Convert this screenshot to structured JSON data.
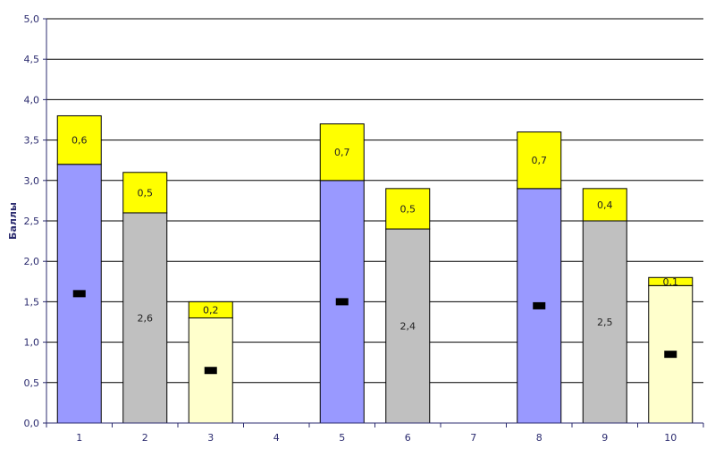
{
  "chart_data": {
    "type": "bar",
    "stacked": true,
    "categories": [
      "1",
      "2",
      "3",
      "4",
      "5",
      "6",
      "7",
      "8",
      "9",
      "10"
    ],
    "series": [
      {
        "values": [
          3.2,
          2.6,
          1.3,
          0,
          3.0,
          2.4,
          0,
          2.9,
          2.5,
          1.7
        ],
        "colors": [
          "#9999ff",
          "#c0c0c0",
          "#ffffcc",
          "#ffffff",
          "#9999ff",
          "#c0c0c0",
          "#ffffff",
          "#9999ff",
          "#c0c0c0",
          "#ffffcc"
        ],
        "labels": [
          "",
          "2,6",
          "",
          "",
          "",
          "2,4",
          "",
          "",
          "2,5",
          ""
        ]
      },
      {
        "values": [
          0.6,
          0.5,
          0.2,
          0,
          0.7,
          0.5,
          0,
          0.7,
          0.4,
          0.1
        ],
        "color": "#ffff00",
        "labels": [
          "0,6",
          "0,5",
          "0,2",
          "",
          "0,7",
          "0,5",
          "",
          "0,7",
          "0,4",
          "0,1"
        ]
      }
    ],
    "markers": [
      1.6,
      null,
      0.65,
      null,
      1.5,
      null,
      null,
      1.45,
      null,
      0.85
    ],
    "marker_color": "#000000",
    "ylabel": "Баллы",
    "xlabel": "",
    "title": "",
    "ylim": [
      0,
      5
    ],
    "yticks": [
      "0,0",
      "0,5",
      "1,0",
      "1,5",
      "2,0",
      "2,5",
      "3,0",
      "3,5",
      "4,0",
      "4,5",
      "5,0"
    ],
    "ytick_values": [
      0,
      0.5,
      1,
      1.5,
      2,
      2.5,
      3,
      3.5,
      4,
      4.5,
      5
    ],
    "grid": true,
    "legend": "none",
    "axis_color": "#2b2b6f"
  }
}
